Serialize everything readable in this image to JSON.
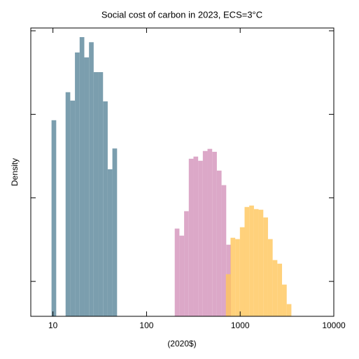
{
  "chart_data": {
    "type": "histogram",
    "title": "Social cost of carbon in 2023, ECS=3°C",
    "xlabel": "(2020$)",
    "ylabel": "Density",
    "xscale": "log",
    "yscale": "log",
    "xlim": [
      5.8,
      10000
    ],
    "ylim": [
      3.82e-05,
      0.108
    ],
    "xticks": [
      10,
      100,
      1000,
      10000
    ],
    "yticks": [
      0.0001,
      0.001,
      0.01,
      0.1
    ],
    "series": [
      {
        "color": "#7b9eae",
        "opacity": 1,
        "bins": [
          9.66,
          10.84,
          12.16,
          13.65,
          15.31,
          17.18,
          19.28,
          21.63,
          24.27,
          27.23,
          30.55,
          34.28,
          38.46,
          43.15,
          48.42
        ],
        "values": [
          0.0085,
          0,
          0,
          0.0184,
          0.0146,
          0.055,
          0.084,
          0.048,
          0.073,
          0.032,
          0.032,
          0.0143,
          0.0022,
          0.0039
        ]
      },
      {
        "color": "#dca8c8",
        "opacity": 1,
        "bins": [
          200,
          224.4,
          251.8,
          282.5,
          317.0,
          355.6,
          399.0,
          447.7,
          502.3,
          563.6,
          632.4,
          709.6,
          796.2
        ],
        "values": [
          0.000429,
          0.000353,
          0.000693,
          0.00294,
          0.00312,
          0.00278,
          0.00364,
          0.00386,
          0.00356,
          0.00212,
          0.00142,
          0.000275
        ]
      },
      {
        "color": "#ffc65a",
        "opacity": 0.8,
        "bins": [
          703.1,
          788.9,
          885.2,
          993.1,
          1114,
          1250,
          1403,
          1574,
          1766,
          1982,
          2223,
          2495,
          2799,
          3141,
          3524
        ],
        "values": [
          0.000122,
          0.000333,
          0.000321,
          0.000445,
          0.000778,
          0.000809,
          0.000734,
          0.000721,
          0.000583,
          0.000321,
          0.00018,
          0.000163,
          9.16e-05,
          5.35e-05
        ]
      }
    ]
  }
}
